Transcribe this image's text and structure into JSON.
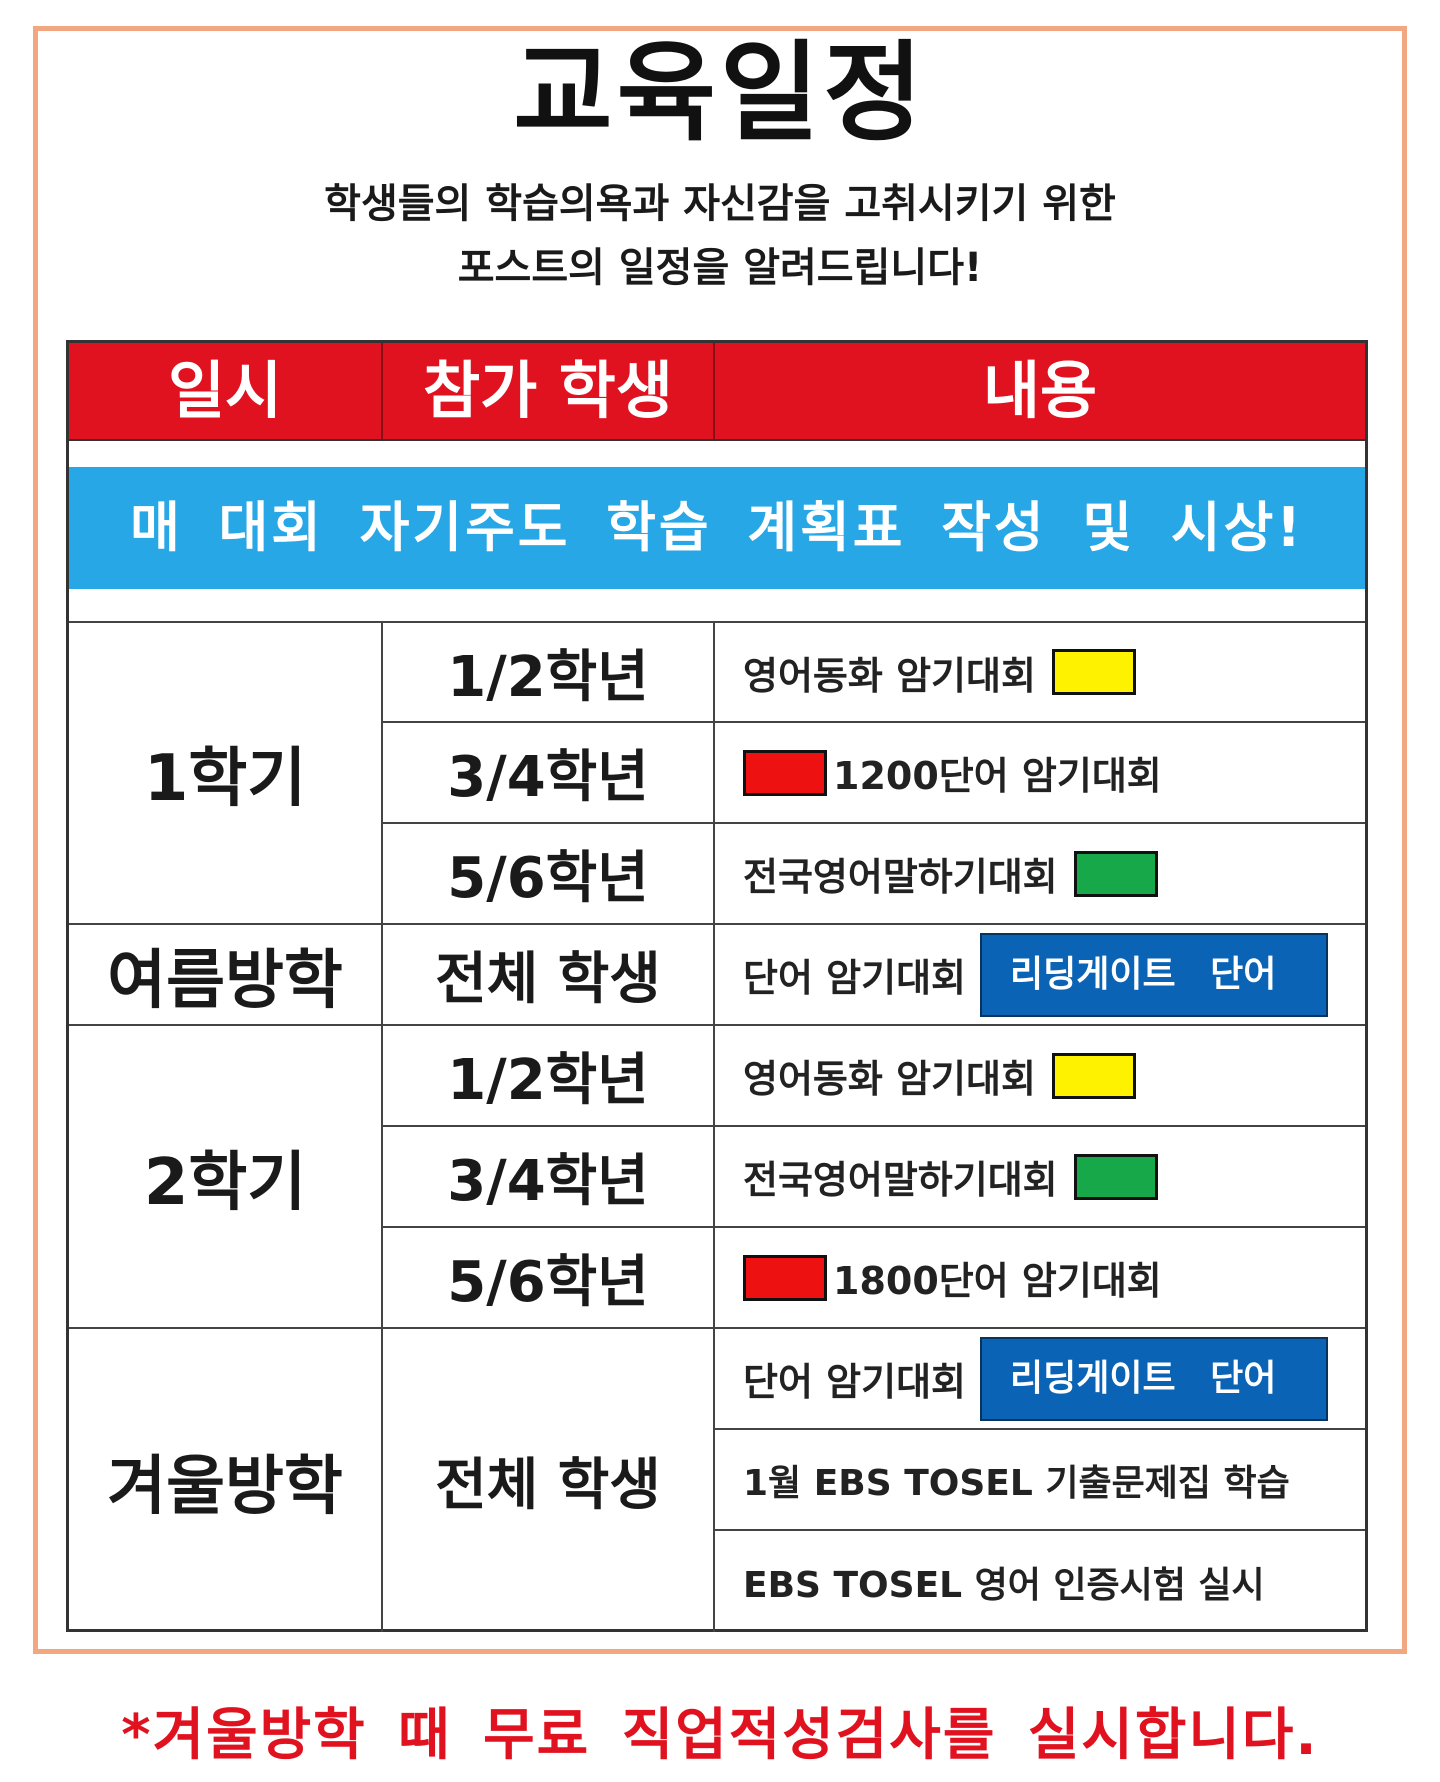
{
  "title": "교육일정",
  "subtitle": {
    "line1": "학생들의 학습의욕과 자신감을 고취시키기 위한",
    "line2": "포스트의 일정을 알려드립니다!"
  },
  "table": {
    "headers": [
      "일시",
      "참가 학생",
      "내용"
    ],
    "header_color": "#e0121f",
    "banner": "매 대회 자기주도 학습 계획표 작성 및 시상!",
    "banner_color": "#27a7e6",
    "periods": [
      "1학기",
      "여름방학",
      "2학기",
      "겨울방학"
    ],
    "students": {
      "s1_g12": "1/2학년",
      "s1_g34": "3/4학년",
      "s1_g56": "5/6학년",
      "summer_all": "전체 학생",
      "s2_g12": "1/2학년",
      "s2_g34": "3/4학년",
      "s2_g56": "5/6학년",
      "winter_all": "전체 학생"
    },
    "content": {
      "s1_g12": "영어동화 암기대회",
      "s1_g34": "1200단어 암기대회",
      "s1_g56": "전국영어말하기대회",
      "summer": "단어 암기대회",
      "s2_g12": "영어동화 암기대회",
      "s2_g34": "전국영어말하기대회",
      "s2_g56": "1800단어 암기대회",
      "winter1": "단어 암기대회",
      "winter2": "1월 EBS TOSEL 기출문제집 학습",
      "winter3": "EBS TOSEL 영어 인증시험 실시"
    },
    "tag_label": "리딩게이트 단어",
    "swatch_colors": {
      "yellow": "#fff200",
      "red": "#ee1111",
      "green": "#17a84a",
      "tag_blue": "#0a63b5"
    }
  },
  "footer_note": "*겨울방학 때 무료 직업적성검사를 실시합니다."
}
